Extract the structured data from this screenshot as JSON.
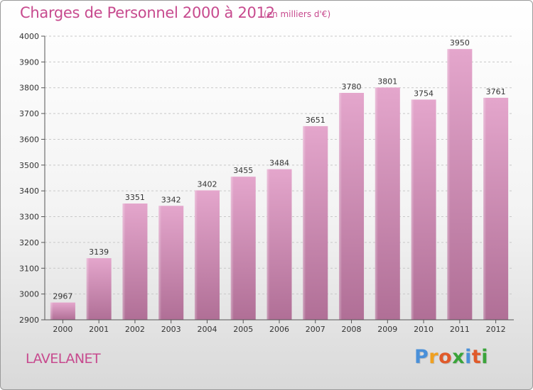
{
  "header": {
    "title": "Charges de Personnel 2000 à 2012",
    "subtitle": "(en milliers d'€)"
  },
  "footer": {
    "town": "LAVELANET",
    "logo": {
      "letters": [
        "P",
        "r",
        "o",
        "x",
        "i",
        "t",
        "i"
      ],
      "colors": [
        "#4a90d9",
        "#f0a020",
        "#e05a2a",
        "#3aa43a",
        "#4a90d9",
        "#e05a2a",
        "#3aa43a"
      ]
    }
  },
  "colors": {
    "bar_top": "#e4a6cc",
    "bar_bottom": "#b06f96",
    "grid": "#c8c8c8",
    "axis": "#555555"
  },
  "chart_data": {
    "type": "bar",
    "categories": [
      "2000",
      "2001",
      "2002",
      "2003",
      "2004",
      "2005",
      "2006",
      "2007",
      "2008",
      "2009",
      "2010",
      "2011",
      "2012"
    ],
    "values": [
      2967,
      3139,
      3351,
      3342,
      3402,
      3455,
      3484,
      3651,
      3780,
      3801,
      3754,
      3950,
      3761
    ],
    "title": "Charges de Personnel 2000 à 2012",
    "subtitle": "(en milliers d'€)",
    "xlabel": "",
    "ylabel": "",
    "ylim": [
      2900,
      4000
    ],
    "yticks": [
      2900,
      3000,
      3100,
      3200,
      3300,
      3400,
      3500,
      3600,
      3700,
      3800,
      3900,
      4000
    ],
    "grid": true,
    "legend": "none"
  }
}
